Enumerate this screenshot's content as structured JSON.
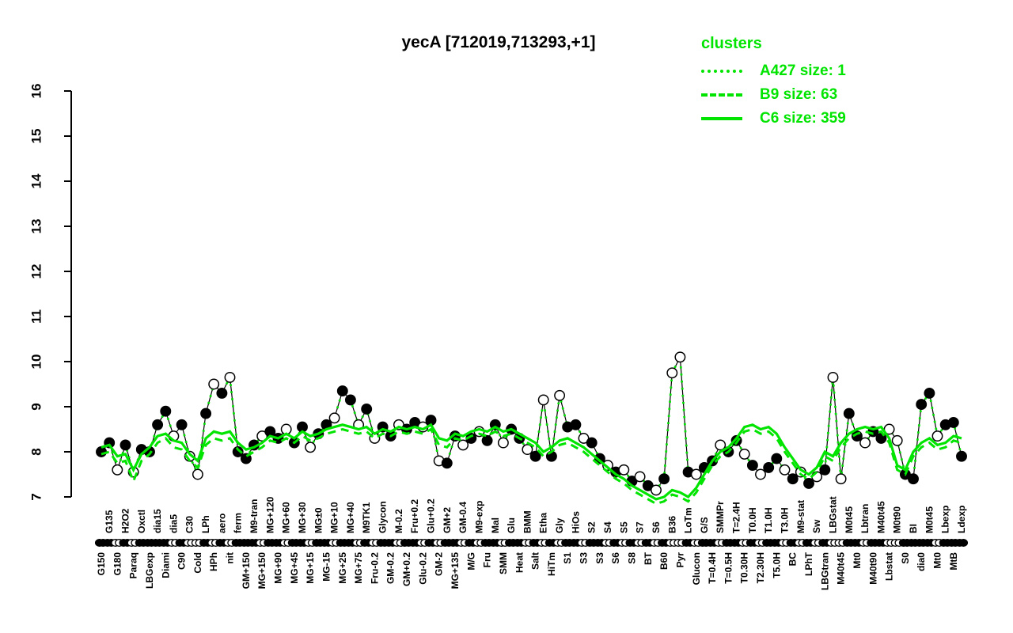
{
  "title": "yecA [712019,713293,+1]",
  "legend": {
    "title": "clusters",
    "entries": [
      {
        "label": "A427 size: 1",
        "style": "dotted"
      },
      {
        "label": "B9 size: 63",
        "style": "dashed"
      },
      {
        "label": "C6 size: 359",
        "style": "solid"
      }
    ]
  },
  "colors": {
    "cluster_green": "#00e400",
    "point_stroke": "#000000",
    "open_fill": "#ffffff"
  },
  "chart_data": {
    "type": "line",
    "title": "yecA [712019,713293,+1]",
    "ylim": [
      7,
      16
    ],
    "yticks": [
      7,
      8,
      9,
      10,
      11,
      12,
      13,
      14,
      15,
      16
    ],
    "grid": false,
    "legend_position": "top-right",
    "note": "gene expression profile: black points (filled/open) with connecting line; A427 dotted green tracks the gene profile; B9 dashed and C6 solid are cluster mean profiles",
    "points": [
      {
        "l": "G150",
        "r": "b",
        "v": 8.0,
        "f": 1
      },
      {
        "l": "G135",
        "r": "t",
        "v": 8.2,
        "f": 1
      },
      {
        "l": "G180",
        "r": "b",
        "v": 7.6,
        "f": 0
      },
      {
        "l": "H2O2",
        "r": "t",
        "v": 8.15,
        "f": 1
      },
      {
        "l": "Paraq",
        "r": "b",
        "v": 7.55,
        "f": 0
      },
      {
        "l": "Oxctl",
        "r": "t",
        "v": 8.05,
        "f": 1
      },
      {
        "l": "LBGexp",
        "r": "b",
        "v": 8.0,
        "f": 1
      },
      {
        "l": "dia15",
        "r": "t",
        "v": 8.6,
        "f": 1
      },
      {
        "l": "Diami",
        "r": "b",
        "v": 8.9,
        "f": 1
      },
      {
        "l": "dia5",
        "r": "t",
        "v": 8.35,
        "f": 0
      },
      {
        "l": "C90",
        "r": "b",
        "v": 8.6,
        "f": 1
      },
      {
        "l": "C30",
        "r": "t",
        "v": 7.9,
        "f": 0
      },
      {
        "l": "Cold",
        "r": "b",
        "v": 7.5,
        "f": 0
      },
      {
        "l": "LPh",
        "r": "t",
        "v": 8.85,
        "f": 1
      },
      {
        "l": "HPh",
        "r": "b",
        "v": 9.5,
        "f": 0
      },
      {
        "l": "aero",
        "r": "t",
        "v": 9.3,
        "f": 1
      },
      {
        "l": "nit",
        "r": "b",
        "v": 9.65,
        "f": 0
      },
      {
        "l": "ferm",
        "r": "t",
        "v": 8.0,
        "f": 1
      },
      {
        "l": "GM+150",
        "r": "b",
        "v": 7.85,
        "f": 1
      },
      {
        "l": "M9-tran",
        "r": "t",
        "v": 8.15,
        "f": 1
      },
      {
        "l": "MG+150",
        "r": "b",
        "v": 8.35,
        "f": 0
      },
      {
        "l": "MG+120",
        "r": "t",
        "v": 8.45,
        "f": 1
      },
      {
        "l": "MG+90",
        "r": "b",
        "v": 8.3,
        "f": 1
      },
      {
        "l": "MG+60",
        "r": "t",
        "v": 8.5,
        "f": 0
      },
      {
        "l": "MG+45",
        "r": "b",
        "v": 8.2,
        "f": 1
      },
      {
        "l": "MG+30",
        "r": "t",
        "v": 8.55,
        "f": 1
      },
      {
        "l": "MG+15",
        "r": "b",
        "v": 8.1,
        "f": 0
      },
      {
        "l": "MG±0",
        "r": "t",
        "v": 8.4,
        "f": 1
      },
      {
        "l": "MG-15",
        "r": "b",
        "v": 8.6,
        "f": 1
      },
      {
        "l": "MG+10",
        "r": "t",
        "v": 8.75,
        "f": 0
      },
      {
        "l": "MG+25",
        "r": "b",
        "v": 9.35,
        "f": 1
      },
      {
        "l": "MG+40",
        "r": "t",
        "v": 9.15,
        "f": 1
      },
      {
        "l": "MG+75",
        "r": "b",
        "v": 8.6,
        "f": 0
      },
      {
        "l": "M9TK1",
        "r": "t",
        "v": 8.95,
        "f": 1
      },
      {
        "l": "Fru-0.2",
        "r": "b",
        "v": 8.3,
        "f": 0
      },
      {
        "l": "Glycon",
        "r": "t",
        "v": 8.55,
        "f": 1
      },
      {
        "l": "GM-0.2",
        "r": "b",
        "v": 8.35,
        "f": 1
      },
      {
        "l": "M-0.2",
        "r": "t",
        "v": 8.6,
        "f": 0
      },
      {
        "l": "GM+0.2",
        "r": "b",
        "v": 8.5,
        "f": 1
      },
      {
        "l": "Fru+0.2",
        "r": "t",
        "v": 8.65,
        "f": 1
      },
      {
        "l": "Glu-0.2",
        "r": "b",
        "v": 8.55,
        "f": 0
      },
      {
        "l": "Glu+0.2",
        "r": "t",
        "v": 8.7,
        "f": 1
      },
      {
        "l": "GM-2",
        "r": "b",
        "v": 7.8,
        "f": 0
      },
      {
        "l": "GM+2",
        "r": "t",
        "v": 7.75,
        "f": 1
      },
      {
        "l": "MG+135",
        "r": "b",
        "v": 8.35,
        "f": 1
      },
      {
        "l": "GM-0.4",
        "r": "t",
        "v": 8.15,
        "f": 0
      },
      {
        "l": "M/G",
        "r": "b",
        "v": 8.3,
        "f": 1
      },
      {
        "l": "M9-exp",
        "r": "t",
        "v": 8.45,
        "f": 0
      },
      {
        "l": "Fru",
        "r": "b",
        "v": 8.25,
        "f": 1
      },
      {
        "l": "Mal",
        "r": "t",
        "v": 8.6,
        "f": 1
      },
      {
        "l": "SMM",
        "r": "b",
        "v": 8.2,
        "f": 0
      },
      {
        "l": "Glu",
        "r": "t",
        "v": 8.5,
        "f": 1
      },
      {
        "l": "Heat",
        "r": "b",
        "v": 8.3,
        "f": 1
      },
      {
        "l": "BMM",
        "r": "t",
        "v": 8.05,
        "f": 0
      },
      {
        "l": "Salt",
        "r": "b",
        "v": 7.9,
        "f": 1
      },
      {
        "l": "Etha",
        "r": "t",
        "v": 9.15,
        "f": 0
      },
      {
        "l": "HiTm",
        "r": "b",
        "v": 7.9,
        "f": 1
      },
      {
        "l": "Gly",
        "r": "t",
        "v": 9.25,
        "f": 0
      },
      {
        "l": "S1",
        "r": "b",
        "v": 8.55,
        "f": 1
      },
      {
        "l": "HiOs",
        "r": "t",
        "v": 8.6,
        "f": 1
      },
      {
        "l": "S3",
        "r": "b",
        "v": 8.3,
        "f": 0
      },
      {
        "l": "S2",
        "r": "t",
        "v": 8.2,
        "f": 1
      },
      {
        "l": "S3",
        "r": "b",
        "v": 7.85,
        "f": 1
      },
      {
        "l": "S4",
        "r": "t",
        "v": 7.7,
        "f": 0
      },
      {
        "l": "S6",
        "r": "b",
        "v": 7.55,
        "f": 1
      },
      {
        "l": "S5",
        "r": "t",
        "v": 7.6,
        "f": 0
      },
      {
        "l": "S8",
        "r": "b",
        "v": 7.35,
        "f": 1
      },
      {
        "l": "S7",
        "r": "t",
        "v": 7.45,
        "f": 0
      },
      {
        "l": "BT",
        "r": "b",
        "v": 7.25,
        "f": 1
      },
      {
        "l": "S6",
        "r": "t",
        "v": 7.15,
        "f": 0
      },
      {
        "l": "B60",
        "r": "b",
        "v": 7.4,
        "f": 1
      },
      {
        "l": "B36",
        "r": "t",
        "v": 9.75,
        "f": 0
      },
      {
        "l": "Pyr",
        "r": "b",
        "v": 10.1,
        "f": 0
      },
      {
        "l": "LoTm",
        "r": "t",
        "v": 7.55,
        "f": 1
      },
      {
        "l": "Glucon",
        "r": "b",
        "v": 7.5,
        "f": 0
      },
      {
        "l": "G/S",
        "r": "t",
        "v": 7.65,
        "f": 1
      },
      {
        "l": "T=0.4H",
        "r": "b",
        "v": 7.8,
        "f": 1
      },
      {
        "l": "SMMPr",
        "r": "t",
        "v": 8.15,
        "f": 0
      },
      {
        "l": "T=0.5H",
        "r": "b",
        "v": 8.0,
        "f": 1
      },
      {
        "l": "T=2.4H",
        "r": "t",
        "v": 8.25,
        "f": 1
      },
      {
        "l": "T0.30H",
        "r": "b",
        "v": 7.95,
        "f": 0
      },
      {
        "l": "T0.0H",
        "r": "t",
        "v": 7.7,
        "f": 1
      },
      {
        "l": "T2.30H",
        "r": "b",
        "v": 7.5,
        "f": 0
      },
      {
        "l": "T1.0H",
        "r": "t",
        "v": 7.65,
        "f": 1
      },
      {
        "l": "T5.0H",
        "r": "b",
        "v": 7.85,
        "f": 1
      },
      {
        "l": "T3.0H",
        "r": "t",
        "v": 7.6,
        "f": 0
      },
      {
        "l": "BC",
        "r": "b",
        "v": 7.4,
        "f": 1
      },
      {
        "l": "M9-stat",
        "r": "t",
        "v": 7.55,
        "f": 0
      },
      {
        "l": "LPhT",
        "r": "b",
        "v": 7.3,
        "f": 1
      },
      {
        "l": "Sw",
        "r": "t",
        "v": 7.45,
        "f": 0
      },
      {
        "l": "LBGtran",
        "r": "b",
        "v": 7.6,
        "f": 1
      },
      {
        "l": "LBGstat",
        "r": "t",
        "v": 9.65,
        "f": 0
      },
      {
        "l": "M40t45",
        "r": "b",
        "v": 7.4,
        "f": 0
      },
      {
        "l": "M0t45",
        "r": "t",
        "v": 8.85,
        "f": 1
      },
      {
        "l": "Mt0",
        "r": "b",
        "v": 8.35,
        "f": 1
      },
      {
        "l": "Lbtran",
        "r": "t",
        "v": 8.2,
        "f": 0
      },
      {
        "l": "M40t90",
        "r": "b",
        "v": 8.45,
        "f": 1
      },
      {
        "l": "M40t45",
        "r": "t",
        "v": 8.3,
        "f": 1
      },
      {
        "l": "Lbstat",
        "r": "b",
        "v": 8.5,
        "f": 0
      },
      {
        "l": "M0t90",
        "r": "t",
        "v": 8.25,
        "f": 0
      },
      {
        "l": "S0",
        "r": "b",
        "v": 7.5,
        "f": 1
      },
      {
        "l": "BI",
        "r": "t",
        "v": 7.4,
        "f": 1
      },
      {
        "l": "dia0",
        "r": "b",
        "v": 9.05,
        "f": 1
      },
      {
        "l": "M0t45",
        "r": "t",
        "v": 9.3,
        "f": 1
      },
      {
        "l": "Mt0",
        "r": "b",
        "v": 8.35,
        "f": 0
      },
      {
        "l": "Lbexp",
        "r": "t",
        "v": 8.6,
        "f": 1
      },
      {
        "l": "MtB",
        "r": "b",
        "v": 8.65,
        "f": 1
      },
      {
        "l": "Ldexp",
        "r": "t",
        "v": 7.9,
        "f": 1
      }
    ],
    "series": [
      {
        "name": "C6",
        "style": "solid",
        "values": [
          8.1,
          8.15,
          7.9,
          7.95,
          7.6,
          7.95,
          8.1,
          8.35,
          8.4,
          8.25,
          8.2,
          7.95,
          7.8,
          8.3,
          8.45,
          8.4,
          8.45,
          8.2,
          8.05,
          8.1,
          8.2,
          8.35,
          8.3,
          8.4,
          8.3,
          8.45,
          8.35,
          8.4,
          8.5,
          8.55,
          8.6,
          8.55,
          8.5,
          8.55,
          8.4,
          8.5,
          8.45,
          8.55,
          8.5,
          8.55,
          8.5,
          8.6,
          8.3,
          8.25,
          8.4,
          8.35,
          8.45,
          8.5,
          8.45,
          8.55,
          8.45,
          8.5,
          8.4,
          8.3,
          8.2,
          8.0,
          8.1,
          8.25,
          8.3,
          8.2,
          8.1,
          7.95,
          7.8,
          7.65,
          7.5,
          7.4,
          7.25,
          7.15,
          7.05,
          6.95,
          7.0,
          7.15,
          7.1,
          7.0,
          7.2,
          7.5,
          7.8,
          8.0,
          8.1,
          8.3,
          8.55,
          8.6,
          8.5,
          8.55,
          8.4,
          8.1,
          7.85,
          7.6,
          7.5,
          7.65,
          8.0,
          7.9,
          8.2,
          8.4,
          8.5,
          8.55,
          8.5,
          8.55,
          8.3,
          7.7,
          7.6,
          8.0,
          8.2,
          8.3,
          8.15,
          8.2,
          8.35,
          8.3
        ]
      },
      {
        "name": "B9",
        "style": "dashed",
        "values": [
          7.95,
          8.0,
          7.75,
          7.8,
          7.35,
          7.8,
          7.95,
          8.2,
          8.3,
          8.1,
          8.05,
          7.8,
          7.65,
          8.15,
          8.3,
          8.25,
          8.3,
          8.05,
          7.9,
          8.0,
          8.1,
          8.25,
          8.2,
          8.3,
          8.2,
          8.35,
          8.25,
          8.3,
          8.4,
          8.45,
          8.5,
          8.45,
          8.4,
          8.45,
          8.3,
          8.4,
          8.35,
          8.45,
          8.4,
          8.45,
          8.4,
          8.5,
          8.15,
          8.1,
          8.3,
          8.25,
          8.35,
          8.4,
          8.35,
          8.45,
          8.35,
          8.4,
          8.3,
          8.2,
          8.1,
          7.9,
          8.0,
          8.15,
          8.2,
          8.1,
          8.0,
          7.85,
          7.7,
          7.55,
          7.4,
          7.3,
          7.15,
          7.05,
          6.95,
          6.85,
          6.9,
          7.05,
          7.0,
          6.9,
          7.1,
          7.4,
          7.7,
          7.9,
          8.0,
          8.2,
          8.45,
          8.5,
          8.4,
          8.45,
          8.3,
          8.0,
          7.75,
          7.5,
          7.4,
          7.55,
          7.9,
          7.8,
          8.1,
          8.3,
          8.4,
          8.45,
          8.4,
          8.45,
          8.2,
          7.6,
          7.5,
          7.9,
          8.1,
          8.2,
          8.05,
          8.1,
          8.25,
          8.2
        ]
      },
      {
        "name": "A427",
        "style": "dotted",
        "follows_points": true
      }
    ]
  }
}
